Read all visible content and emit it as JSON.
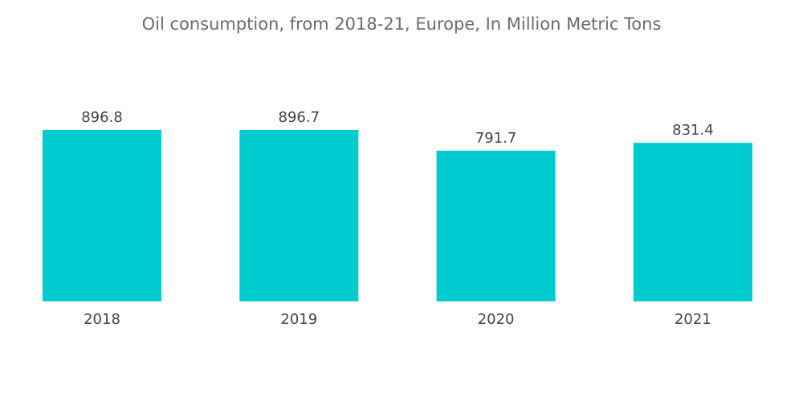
{
  "chart_data": {
    "type": "bar",
    "title": "Oil consumption, from 2018-21, Europe, In Million Metric Tons",
    "categories": [
      "2018",
      "2019",
      "2020",
      "2021"
    ],
    "values": [
      896.8,
      896.7,
      791.7,
      831.4
    ],
    "data_labels": [
      "896.8",
      "896.7",
      "791.7",
      "831.4"
    ],
    "xlabel": "",
    "ylabel": "",
    "ylim": [
      0,
      896.8
    ],
    "grid": false,
    "legend": "none",
    "bar_color": "#00cccf"
  }
}
